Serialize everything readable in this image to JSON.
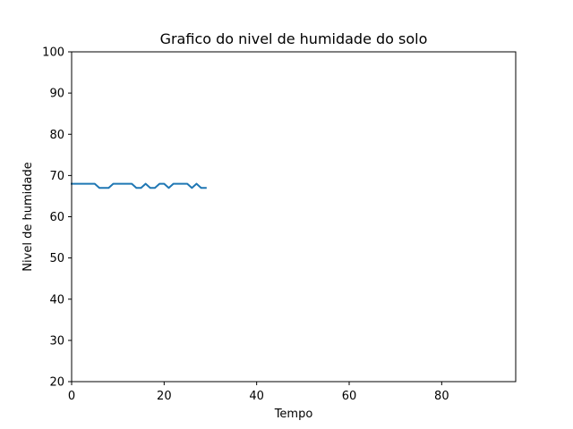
{
  "chart_data": {
    "type": "line",
    "title": "Grafico do nivel de humidade do solo",
    "xlabel": "Tempo",
    "ylabel": "Nivel de humidade",
    "xlim": [
      0,
      96
    ],
    "ylim": [
      20,
      100
    ],
    "xticks": [
      0,
      20,
      40,
      60,
      80
    ],
    "xtick_labels": [
      "0",
      "20",
      "40",
      "60",
      "80"
    ],
    "yticks": [
      20,
      30,
      40,
      50,
      60,
      70,
      80,
      90,
      100
    ],
    "ytick_labels": [
      "20",
      "30",
      "40",
      "50",
      "60",
      "70",
      "80",
      "90",
      "100"
    ],
    "grid": false,
    "series": [
      {
        "color": "#1f77b4",
        "x": [
          0,
          1,
          2,
          3,
          4,
          5,
          6,
          7,
          8,
          9,
          10,
          11,
          12,
          13,
          14,
          15,
          16,
          17,
          18,
          19,
          20,
          21,
          22,
          23,
          24,
          25,
          26,
          27,
          28,
          29
        ],
        "values": [
          68,
          68,
          68,
          68,
          68,
          68,
          67,
          67,
          67,
          68,
          68,
          68,
          68,
          68,
          67,
          67,
          68,
          67,
          67,
          68,
          68,
          67,
          68,
          68,
          68,
          68,
          67,
          68,
          67,
          67
        ]
      }
    ]
  }
}
